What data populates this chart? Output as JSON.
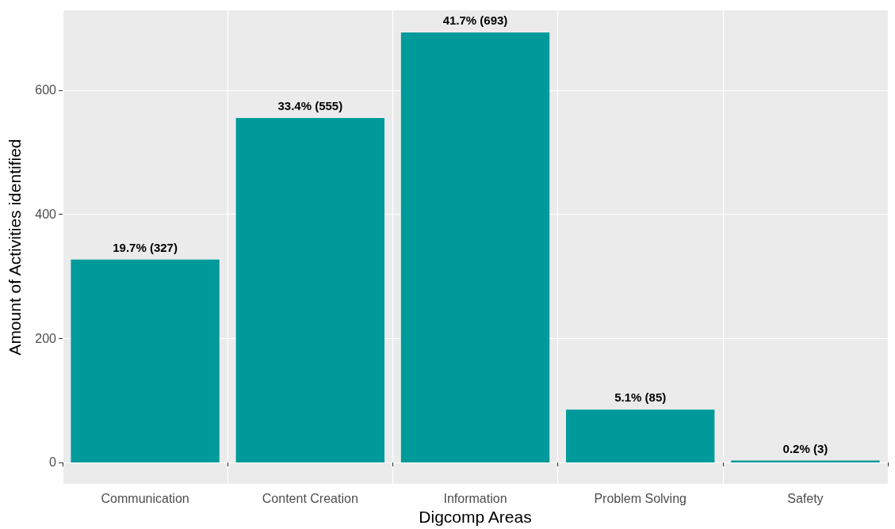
{
  "chart_data": {
    "type": "bar",
    "xlabel": "Digcomp Areas",
    "ylabel": "Amount of Activities identified",
    "categories": [
      "Communication",
      "Content Creation",
      "Information",
      "Problem Solving",
      "Safety"
    ],
    "values": [
      327,
      555,
      693,
      85,
      3
    ],
    "value_labels": [
      "19.7% (327)",
      "33.4% (555)",
      "41.7% (693)",
      "5.1% (85)",
      "0.2% (3)"
    ],
    "color": "#009a9a",
    "ylim": [
      -34.7,
      728.6
    ],
    "yticks": [
      0,
      200,
      400,
      600
    ],
    "grid": true
  }
}
